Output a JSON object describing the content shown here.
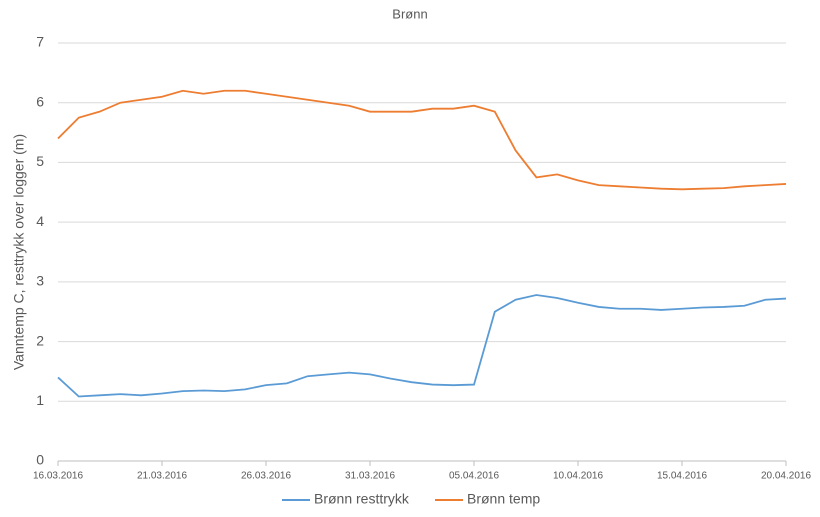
{
  "chart_data": {
    "type": "line",
    "title": "Brønn",
    "y_label": "Vanntemp C, resttrykk over logger (m)",
    "x": [
      "16.03.2016",
      "17.03.2016",
      "18.03.2016",
      "19.03.2016",
      "20.03.2016",
      "21.03.2016",
      "22.03.2016",
      "23.03.2016",
      "24.03.2016",
      "25.03.2016",
      "26.03.2016",
      "27.03.2016",
      "28.03.2016",
      "29.03.2016",
      "30.03.2016",
      "31.03.2016",
      "01.04.2016",
      "02.04.2016",
      "03.04.2016",
      "04.04.2016",
      "05.04.2016",
      "06.04.2016",
      "07.04.2016",
      "08.04.2016",
      "09.04.2016",
      "10.04.2016",
      "11.04.2016",
      "12.04.2016",
      "13.04.2016",
      "14.04.2016",
      "15.04.2016",
      "16.04.2016",
      "17.04.2016",
      "18.04.2016",
      "19.04.2016",
      "20.04.2016"
    ],
    "series": [
      {
        "name": "Brønn resttrykk",
        "color": "#5b9bd5",
        "values": [
          1.4,
          1.08,
          1.1,
          1.12,
          1.1,
          1.13,
          1.17,
          1.18,
          1.17,
          1.2,
          1.27,
          1.3,
          1.42,
          1.45,
          1.48,
          1.45,
          1.38,
          1.32,
          1.28,
          1.27,
          1.28,
          2.5,
          2.7,
          2.78,
          2.73,
          2.65,
          2.58,
          2.55,
          2.55,
          2.53,
          2.55,
          2.57,
          2.58,
          2.6,
          2.7,
          2.72
        ]
      },
      {
        "name": "Brønn temp",
        "color": "#ed7d31",
        "values": [
          5.4,
          5.75,
          5.85,
          6.0,
          6.05,
          6.1,
          6.2,
          6.15,
          6.2,
          6.2,
          6.15,
          6.1,
          6.05,
          6.0,
          5.95,
          5.85,
          5.85,
          5.85,
          5.9,
          5.9,
          5.95,
          5.85,
          5.2,
          4.75,
          4.8,
          4.7,
          4.62,
          4.6,
          4.58,
          4.56,
          4.55,
          4.56,
          4.57,
          4.6,
          4.62,
          4.64
        ]
      }
    ],
    "xlim": [
      "16.03.2016",
      "20.04.2016"
    ],
    "xticks": [
      "16.03.2016",
      "21.03.2016",
      "26.03.2016",
      "31.03.2016",
      "05.04.2016",
      "10.04.2016",
      "15.04.2016",
      "20.04.2016"
    ],
    "ylim": [
      0,
      7
    ],
    "yticks": [
      0,
      1,
      2,
      3,
      4,
      5,
      6,
      7
    ],
    "grid": true,
    "legend": "bottom"
  }
}
